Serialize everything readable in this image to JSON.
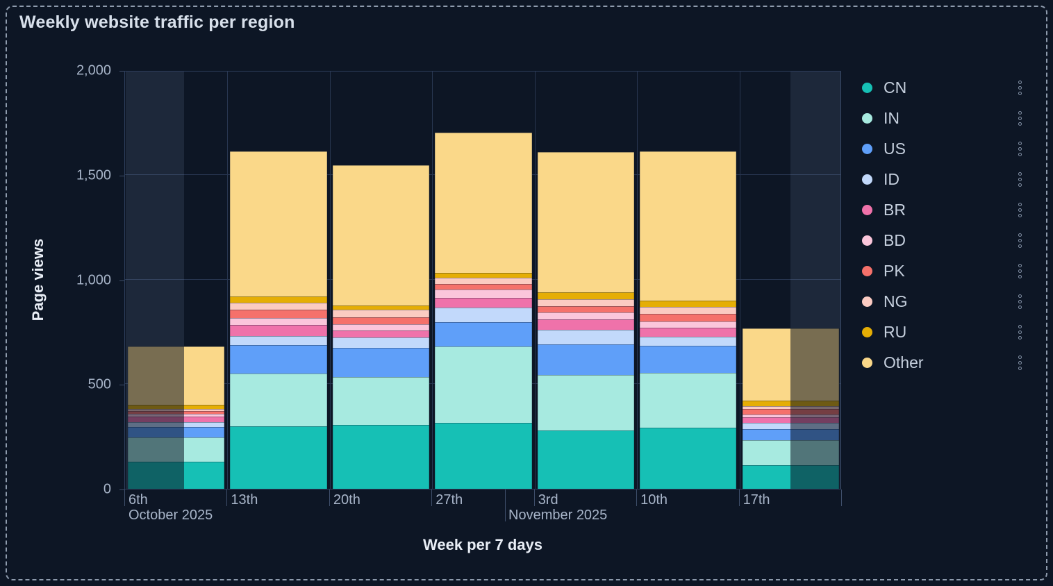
{
  "title": "Weekly website traffic per region",
  "chart_data": {
    "type": "bar",
    "stacked": true,
    "title": "Weekly website traffic per region",
    "xlabel": "Week per 7 days",
    "ylabel": "Page views",
    "ylim": [
      0,
      2000
    ],
    "grid": true,
    "legend_position": "right",
    "y_ticks": [
      {
        "value": 0,
        "label": "0"
      },
      {
        "value": 500,
        "label": "500"
      },
      {
        "value": 1000,
        "label": "1,000"
      },
      {
        "value": 1500,
        "label": "1,500"
      },
      {
        "value": 2000,
        "label": "2,000"
      }
    ],
    "categories": [
      "6th",
      "13th",
      "20th",
      "27th",
      "3rd",
      "10th",
      "17th"
    ],
    "month_labels": [
      {
        "label": "October 2025",
        "anchor_category": "6th"
      },
      {
        "label": "November 2025",
        "anchor": "Nov 1 boundary between 27th and 3rd"
      }
    ],
    "series": [
      {
        "name": "CN",
        "color": "#16C0B5",
        "values": [
          130,
          300,
          305,
          315,
          280,
          293,
          114
        ]
      },
      {
        "name": "IN",
        "color": "#A7EAE0",
        "values": [
          115,
          250,
          230,
          365,
          263,
          262,
          118
        ]
      },
      {
        "name": "US",
        "color": "#5F9FF9",
        "values": [
          50,
          135,
          140,
          115,
          146,
          130,
          52
        ]
      },
      {
        "name": "ID",
        "color": "#C2D9FB",
        "values": [
          22,
          46,
          48,
          70,
          71,
          41,
          31
        ]
      },
      {
        "name": "BR",
        "color": "#EF72AA",
        "values": [
          28,
          50,
          33,
          48,
          51,
          42,
          28
        ]
      },
      {
        "name": "BD",
        "color": "#FBC6DB",
        "values": [
          13,
          36,
          30,
          38,
          33,
          31,
          13
        ]
      },
      {
        "name": "PK",
        "color": "#F5716B",
        "values": [
          14,
          37,
          35,
          26,
          28,
          36,
          26
        ]
      },
      {
        "name": "NG",
        "color": "#FBCBC2",
        "values": [
          11,
          33,
          35,
          31,
          33,
          33,
          13
        ]
      },
      {
        "name": "RU",
        "color": "#E5AE05",
        "values": [
          19,
          31,
          20,
          25,
          33,
          30,
          26
        ]
      },
      {
        "name": "Other",
        "color": "#FAD889",
        "values": [
          280,
          695,
          670,
          670,
          672,
          714,
          345
        ]
      }
    ],
    "totals_approx": [
      682,
      1613,
      1546,
      1703,
      1610,
      1612,
      766
    ],
    "partial_weeks_shaded": [
      "6th",
      "17th"
    ]
  },
  "legend": {
    "items": [
      "CN",
      "IN",
      "US",
      "ID",
      "BR",
      "BD",
      "PK",
      "NG",
      "RU",
      "Other"
    ],
    "item_menu_icon": "kebab-menu-icon"
  },
  "colors": {
    "background": "#0D1625",
    "grid": "#283650",
    "axis_text": "#A8B5C9",
    "title_text": "#D8E0EB",
    "partial_week_band": "rgba(141,162,199,0.13)"
  }
}
